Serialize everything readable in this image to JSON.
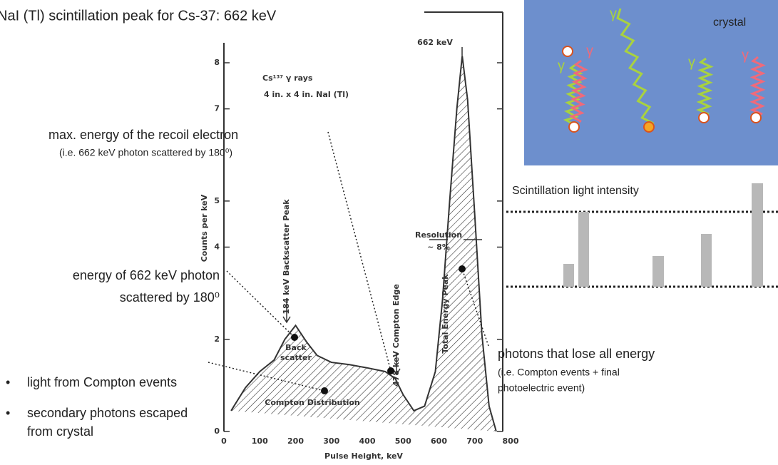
{
  "title": "NaI (Tl) scintillation peak for Cs-37: 662 keV",
  "annotations": {
    "max_energy": "max. energy of the recoil electron",
    "max_energy_note": "(i.e. 662 keV photon scattered by 180⁰)",
    "backscatter_1": "energy of 662 keV photon",
    "backscatter_2": "scattered by 180⁰",
    "photopeak": "photons that lose all energy",
    "photopeak_note_1": "(i.e. Compton events + final",
    "photopeak_note_2": "photoelectric event)"
  },
  "bullets": [
    "light from Compton events",
    "secondary photons escaped",
    "from crystal"
  ],
  "crystal": {
    "label": "crystal",
    "gamma": "γ"
  },
  "intensity_label": "Scintillation light intensity",
  "chart_data": {
    "type": "line",
    "color": "#333333",
    "x": [
      20,
      60,
      100,
      140,
      170,
      200,
      230,
      260,
      300,
      350,
      400,
      450,
      478,
      500,
      530,
      560,
      590,
      610,
      630,
      650,
      665,
      680,
      700,
      720,
      740,
      760
    ],
    "values": [
      0.45,
      0.95,
      1.3,
      1.55,
      2.0,
      2.3,
      1.95,
      1.65,
      1.5,
      1.45,
      1.38,
      1.3,
      1.15,
      0.8,
      0.45,
      0.55,
      1.3,
      2.85,
      5.0,
      7.0,
      8.15,
      7.2,
      4.7,
      2.1,
      0.55,
      0
    ],
    "xlim": [
      0,
      800
    ],
    "ylim": [
      0,
      8
    ],
    "xticks": [
      0,
      100,
      200,
      300,
      400,
      500,
      600,
      700,
      800
    ],
    "yticks": [
      0,
      2,
      4,
      5,
      7,
      8
    ],
    "xlabel": "Pulse Height, keV",
    "ylabel": "Counts per keV",
    "labels": {
      "source": "Cs¹³⁷ γ rays",
      "detector": "4 in. x 4 in. NaI (Tl)",
      "peak": "662 keV",
      "resolution": "Resolution",
      "resolution_value": "~ 8%",
      "backscatter_peak": "184 keV Backscatter Peak",
      "compton_edge": "478 keV Compton Edge",
      "total_peak": "Total Energy Peak",
      "back": "Back",
      "scatter": "scatter",
      "compton_dist": "Compton Distribution"
    }
  }
}
